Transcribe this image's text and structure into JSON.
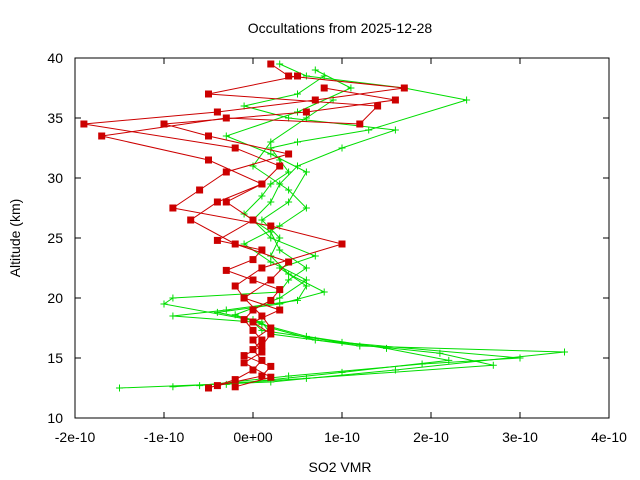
{
  "chart_data": {
    "type": "line",
    "title": "Occultations from 2025-12-28",
    "xlabel": "SO2 VMR",
    "ylabel": "Altitude (km)",
    "xlim": [
      -2e-10,
      4e-10
    ],
    "ylim": [
      10,
      40
    ],
    "x_ticks": [
      {
        "value": -2e-10,
        "label": "-2e-10"
      },
      {
        "value": -1e-10,
        "label": "-1e-10"
      },
      {
        "value": 0,
        "label": "0e+00"
      },
      {
        "value": 1e-10,
        "label": "1e-10"
      },
      {
        "value": 2e-10,
        "label": "2e-10"
      },
      {
        "value": 3e-10,
        "label": "3e-10"
      },
      {
        "value": 4e-10,
        "label": "4e-10"
      }
    ],
    "y_ticks": [
      {
        "value": 10,
        "label": "10"
      },
      {
        "value": 15,
        "label": "15"
      },
      {
        "value": 20,
        "label": "20"
      },
      {
        "value": 25,
        "label": "25"
      },
      {
        "value": 30,
        "label": "30"
      },
      {
        "value": 35,
        "label": "35"
      },
      {
        "value": 40,
        "label": "40"
      }
    ],
    "grid": false,
    "series": [
      {
        "color": "#00dd00",
        "marker": "plus",
        "profiles": [
          {
            "x": [
              -1.5e-10,
              2e-11,
              1.6e-10,
              3.5e-10,
              1.2e-10,
              2e-11,
              1e-11,
              -1e-10,
              -9e-11,
              3e-11,
              4e-11,
              6e-11,
              3e-11,
              2e-11,
              -1e-11,
              1e-11,
              2e-11,
              4e-11,
              3e-11,
              2e-11,
              5e-11,
              1.3e-10,
              2.4e-10,
              1.7e-10,
              6e-11,
              3e-11
            ],
            "y": [
              12.5,
              13.0,
              14.0,
              15.5,
              16.0,
              17.0,
              18.0,
              19.5,
              20.0,
              20.5,
              21.5,
              22.5,
              24.0,
              25.5,
              27.0,
              28.5,
              29.5,
              30.5,
              31.5,
              32.5,
              33.0,
              34.0,
              36.5,
              37.5,
              38.5,
              39.5
            ]
          },
          {
            "x": [
              -6e-11,
              4e-11,
              1.9e-10,
              3e-10,
              1e-10,
              1e-11,
              0.0,
              -9e-11,
              -3e-11,
              5e-11,
              6e-11,
              3e-11,
              7e-11,
              2e-11,
              0.0,
              2e-11,
              3e-11,
              5e-11,
              1e-10,
              1.6e-10,
              4e-11,
              -1e-11,
              5e-11,
              8e-11
            ],
            "y": [
              12.7,
              13.5,
              14.5,
              15.0,
              16.3,
              17.3,
              18.0,
              18.5,
              19.0,
              19.8,
              21.0,
              22.5,
              23.5,
              25.0,
              26.5,
              28.0,
              29.5,
              31.0,
              32.5,
              34.0,
              35.0,
              36.0,
              37.0,
              38.5
            ]
          },
          {
            "x": [
              -9e-11,
              6e-11,
              2.7e-10,
              2.1e-10,
              7e-11,
              2e-11,
              0.0,
              -4e-11,
              3e-11,
              8e-11,
              4e-11,
              2e-11,
              3e-11,
              1e-11,
              4e-11,
              6e-11,
              2e-11,
              -3e-11,
              5e-11,
              1.1e-10,
              7e-11
            ],
            "y": [
              12.6,
              13.3,
              14.4,
              15.4,
              16.5,
              17.5,
              18.2,
              18.8,
              19.5,
              20.5,
              22.0,
              23.5,
              25.0,
              26.5,
              28.0,
              30.5,
              32.0,
              33.5,
              35.5,
              37.5,
              39.0
            ]
          },
          {
            "x": [
              -3e-11,
              1e-10,
              2.2e-10,
              1.5e-10,
              6e-11,
              1e-11,
              -2e-11,
              3e-11,
              6e-11,
              2e-11,
              -1e-11,
              3e-11,
              6e-11,
              4e-11,
              0.0,
              2e-11,
              6e-11,
              9e-11
            ],
            "y": [
              12.8,
              13.8,
              14.8,
              15.8,
              16.8,
              17.8,
              18.6,
              20.0,
              21.5,
              23.0,
              24.5,
              26.0,
              27.5,
              29.0,
              31.0,
              33.0,
              35.0,
              36.5
            ]
          }
        ]
      },
      {
        "color": "#cc0000",
        "marker": "square",
        "profiles": [
          {
            "x": [
              -5e-11,
              -2e-11,
              0.0,
              1e-11,
              0.0,
              1e-11,
              0.0,
              -1e-11,
              0.0,
              2e-11,
              3e-11,
              0.0,
              -3e-11,
              0.0,
              1e-11,
              -4e-11,
              0.0,
              -3e-11,
              1e-11,
              3e-11,
              -2e-11,
              -1.9e-10,
              -4e-11,
              7e-11,
              1.7e-10,
              4e-11,
              2e-11
            ],
            "y": [
              12.5,
              13.2,
              14.0,
              14.8,
              15.7,
              16.5,
              17.3,
              18.2,
              19.0,
              19.8,
              20.7,
              21.5,
              22.3,
              23.2,
              24.0,
              24.8,
              26.5,
              28.0,
              29.5,
              31.0,
              32.5,
              34.5,
              35.5,
              36.5,
              37.5,
              38.5,
              39.5
            ]
          },
          {
            "x": [
              -4e-11,
              1e-11,
              2e-11,
              -1e-11,
              1e-11,
              2e-11,
              0.0,
              3e-11,
              -1e-11,
              -2e-11,
              1e-11,
              1e-10,
              2e-11,
              -9e-11,
              -6e-11,
              -3e-11,
              4e-11,
              -5e-11,
              -1e-10,
              6e-11,
              1.6e-10,
              8e-11
            ],
            "y": [
              12.7,
              13.5,
              14.3,
              15.2,
              16.0,
              17.0,
              18.0,
              19.0,
              20.0,
              21.0,
              22.5,
              24.5,
              26.0,
              27.5,
              29.0,
              30.5,
              32.0,
              33.5,
              34.5,
              35.5,
              36.5,
              37.5
            ]
          },
          {
            "x": [
              -2e-11,
              2e-11,
              -1e-11,
              1e-11,
              0.0,
              2e-11,
              1e-11,
              -1e-11,
              2e-11,
              4e-11,
              -2e-11,
              -7e-11,
              -4e-11,
              1e-11,
              -5e-11,
              -1.7e-10,
              -3e-11,
              1.2e-10,
              1.4e-10,
              -5e-11,
              5e-11
            ],
            "y": [
              12.6,
              13.4,
              14.6,
              15.5,
              16.5,
              17.5,
              18.5,
              20.0,
              21.5,
              23.0,
              24.5,
              26.5,
              28.0,
              29.5,
              31.5,
              33.5,
              35.0,
              34.5,
              36.0,
              37.0,
              38.5
            ]
          }
        ]
      }
    ]
  }
}
